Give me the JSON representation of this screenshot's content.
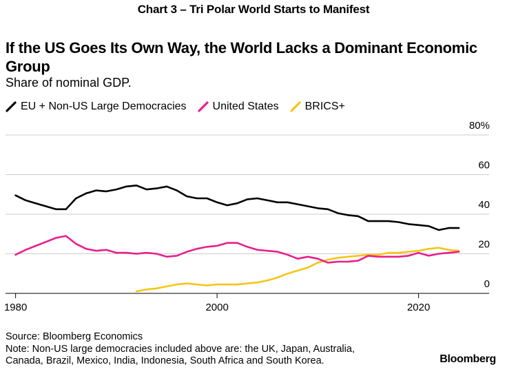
{
  "header": {
    "chart_label": "Chart 3 – Tri Polar World Starts to Manifest"
  },
  "chart_data": {
    "type": "line",
    "title": "If the US Goes Its Own Way, the World Lacks a Dominant Economic Group",
    "subtitle": "Share of nominal GDP.",
    "xlabel": "",
    "ylabel": "",
    "xlim": [
      1979,
      2027
    ],
    "ylim": [
      0,
      80
    ],
    "x_ticks": [
      1980,
      2000,
      2020
    ],
    "x_tick_labels": [
      "1980",
      "2000",
      "2020"
    ],
    "y_ticks": [
      0,
      20,
      40,
      60,
      80
    ],
    "y_tick_labels": [
      "0",
      "20",
      "40",
      "60",
      "80%"
    ],
    "grid": true,
    "legend_position": "top-left",
    "series": [
      {
        "name": "EU + Non-US Large Democracies",
        "color": "#000000",
        "x": [
          1980,
          1981,
          1982,
          1983,
          1984,
          1985,
          1986,
          1987,
          1988,
          1989,
          1990,
          1991,
          1992,
          1993,
          1994,
          1995,
          1996,
          1997,
          1998,
          1999,
          2000,
          2001,
          2002,
          2003,
          2004,
          2005,
          2006,
          2007,
          2008,
          2009,
          2010,
          2011,
          2012,
          2013,
          2014,
          2015,
          2016,
          2017,
          2018,
          2019,
          2020,
          2021,
          2022,
          2023,
          2024
        ],
        "values": [
          49.5,
          47.0,
          45.5,
          44.0,
          42.5,
          42.5,
          48.0,
          50.5,
          52.0,
          51.5,
          52.5,
          54.0,
          54.5,
          52.5,
          53.0,
          54.0,
          52.0,
          49.0,
          48.0,
          48.0,
          46.0,
          44.5,
          45.5,
          47.5,
          48.0,
          47.0,
          46.0,
          46.0,
          45.0,
          44.0,
          43.0,
          42.5,
          40.5,
          39.5,
          39.0,
          36.5,
          36.5,
          36.5,
          36.0,
          35.0,
          34.5,
          34.0,
          32.0,
          33.0,
          33.0
        ]
      },
      {
        "name": "United States",
        "color": "#e91e8c",
        "x": [
          1980,
          1981,
          1982,
          1983,
          1984,
          1985,
          1986,
          1987,
          1988,
          1989,
          1990,
          1991,
          1992,
          1993,
          1994,
          1995,
          1996,
          1997,
          1998,
          1999,
          2000,
          2001,
          2002,
          2003,
          2004,
          2005,
          2006,
          2007,
          2008,
          2009,
          2010,
          2011,
          2012,
          2013,
          2014,
          2015,
          2016,
          2017,
          2018,
          2019,
          2020,
          2021,
          2022,
          2023,
          2024
        ],
        "values": [
          19.5,
          22.0,
          24.0,
          26.0,
          28.0,
          29.0,
          25.0,
          22.5,
          21.5,
          22.0,
          20.5,
          20.5,
          20.0,
          20.5,
          20.0,
          18.5,
          19.0,
          21.0,
          22.5,
          23.5,
          24.0,
          25.5,
          25.5,
          23.5,
          22.0,
          21.5,
          21.0,
          19.5,
          17.5,
          18.5,
          17.5,
          15.5,
          16.0,
          16.0,
          16.5,
          19.0,
          18.5,
          18.5,
          18.5,
          19.0,
          20.5,
          19.0,
          20.0,
          20.5,
          21.0
        ]
      },
      {
        "name": "BRICS+",
        "color": "#f5c518",
        "x": [
          1992,
          1993,
          1994,
          1995,
          1996,
          1997,
          1998,
          1999,
          2000,
          2001,
          2002,
          2003,
          2004,
          2005,
          2006,
          2007,
          2008,
          2009,
          2010,
          2011,
          2012,
          2013,
          2014,
          2015,
          2016,
          2017,
          2018,
          2019,
          2020,
          2021,
          2022,
          2023,
          2024
        ],
        "values": [
          1.0,
          2.0,
          2.5,
          3.5,
          4.5,
          5.0,
          4.5,
          4.0,
          4.5,
          4.5,
          4.5,
          5.0,
          5.5,
          6.5,
          8.0,
          10.0,
          11.5,
          13.0,
          15.5,
          17.0,
          18.0,
          18.5,
          19.0,
          19.5,
          19.5,
          20.5,
          20.5,
          21.0,
          21.5,
          22.5,
          23.0,
          22.0,
          21.5
        ]
      }
    ]
  },
  "footer": {
    "source": "Source: Bloomberg Economics",
    "note_line1": "Note: Non-US large democracies included above are: the UK, Japan, Australia,",
    "note_line2": "Canada, Brazil, Mexico, India, Indonesia, South Africa and South Korea.",
    "brand": "Bloomberg"
  }
}
